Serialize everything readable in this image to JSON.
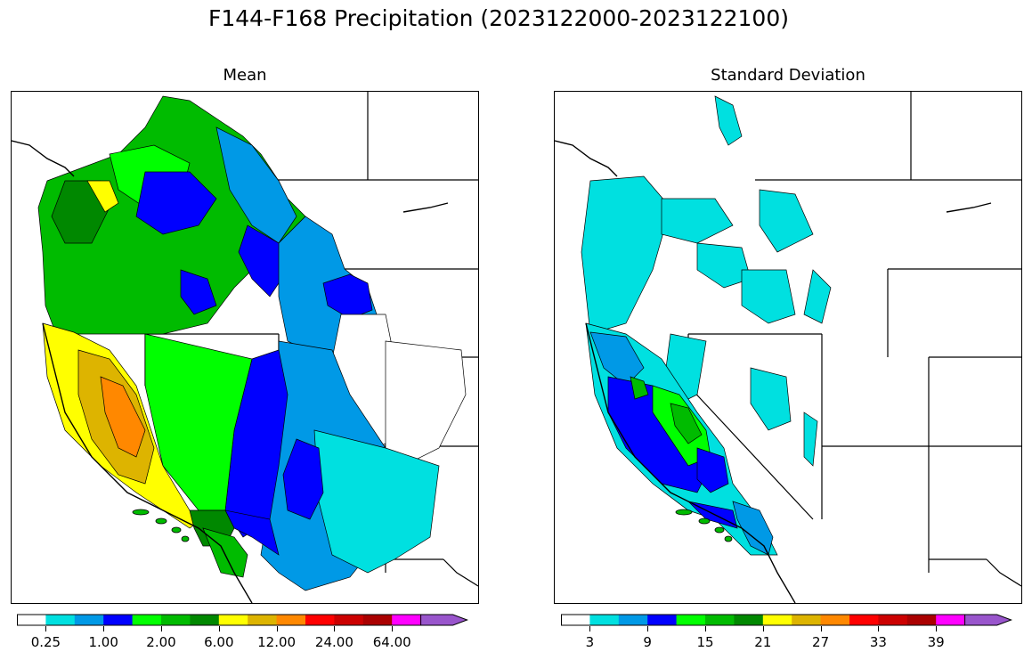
{
  "figure": {
    "title": "F144-F168 Precipitation (2023122000-2023122100)"
  },
  "panels": [
    {
      "title": "Mean"
    },
    {
      "title": "Standard Deviation"
    }
  ],
  "colorbars": {
    "mean": {
      "colors": [
        "#ffffff",
        "#00e0e0",
        "#0099e6",
        "#0000ff",
        "#00ff00",
        "#00bb00",
        "#008800",
        "#ffff00",
        "#ddb400",
        "#ff8800",
        "#ff0000",
        "#cc0000",
        "#aa0000",
        "#ff00ff",
        "#9955cc"
      ],
      "tick_labels": [
        "0.25",
        "1.00",
        "2.00",
        "6.00",
        "12.00",
        "24.00",
        "64.00"
      ],
      "extend": "max"
    },
    "std": {
      "colors": [
        "#ffffff",
        "#00e0e0",
        "#0099e6",
        "#0000ff",
        "#00ff00",
        "#00bb00",
        "#008800",
        "#ffff00",
        "#ddb400",
        "#ff8800",
        "#ff0000",
        "#cc0000",
        "#aa0000",
        "#ff00ff",
        "#9955cc"
      ],
      "tick_labels": [
        "3",
        "9",
        "15",
        "21",
        "27",
        "33",
        "39"
      ],
      "extend": "max"
    }
  }
}
